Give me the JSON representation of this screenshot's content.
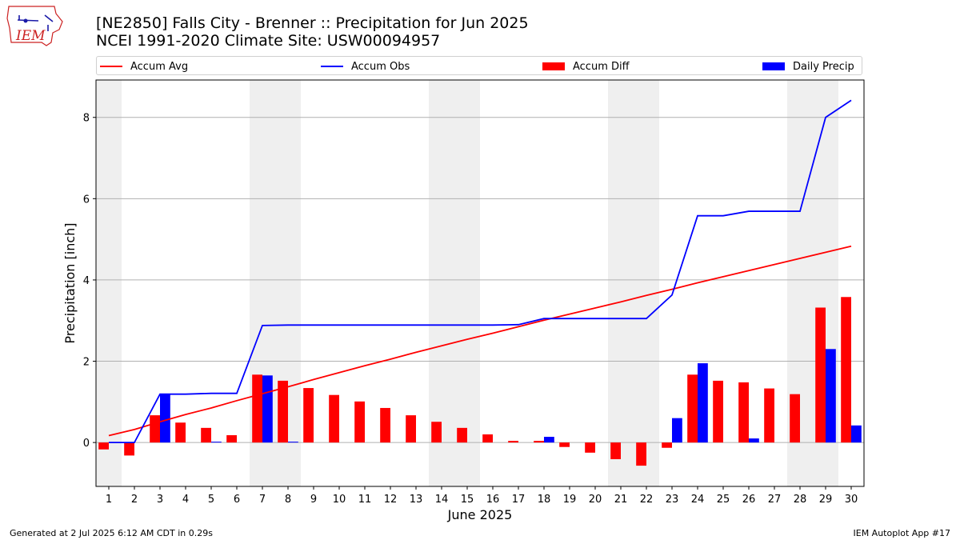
{
  "page": {
    "title_line1": "[NE2850] Falls City - Brenner :: Precipitation for Jun 2025",
    "title_line2": "NCEI 1991-2020 Climate Site: USW00094957",
    "logo_text": "IEM",
    "footer_left": "Generated at 2 Jul 2025 6:12 AM CDT in 0.29s",
    "footer_right": "IEM Autoplot App #17"
  },
  "legend": {
    "items": [
      {
        "label": "Accum Avg",
        "kind": "line",
        "color": "#ff0000"
      },
      {
        "label": "Accum Obs",
        "kind": "line",
        "color": "#0000ff"
      },
      {
        "label": "Accum Diff",
        "kind": "bar",
        "color": "#ff0000"
      },
      {
        "label": "Daily Precip",
        "kind": "bar",
        "color": "#0000ff"
      }
    ]
  },
  "chart_data": {
    "type": "bar",
    "xlabel": "June 2025",
    "ylabel": "Precipitation [inch]",
    "ylim": [
      -1.08,
      8.92
    ],
    "yticks": [
      0,
      2,
      4,
      6,
      8
    ],
    "grid": "horizontal",
    "categories": [
      "1",
      "2",
      "3",
      "4",
      "5",
      "6",
      "7",
      "8",
      "9",
      "10",
      "11",
      "12",
      "13",
      "14",
      "15",
      "16",
      "17",
      "18",
      "19",
      "20",
      "21",
      "22",
      "23",
      "24",
      "25",
      "26",
      "27",
      "28",
      "29",
      "30"
    ],
    "weekend_days": [
      1,
      7,
      8,
      14,
      15,
      21,
      22,
      28,
      29
    ],
    "colors": {
      "avg": "#ff0000",
      "obs": "#0000ff",
      "weekend_shade": "#efefef",
      "grid": "#b0b0b0"
    },
    "series": [
      {
        "name": "Accum Diff",
        "kind": "bar",
        "values": [
          -0.17,
          -0.32,
          0.67,
          0.49,
          0.36,
          0.18,
          1.67,
          1.52,
          1.34,
          1.17,
          1.01,
          0.85,
          0.67,
          0.51,
          0.36,
          0.2,
          0.04,
          0.04,
          -0.11,
          -0.25,
          -0.41,
          -0.57,
          -0.13,
          1.67,
          1.52,
          1.48,
          1.33,
          1.19,
          3.32,
          3.58
        ]
      },
      {
        "name": "Daily Precip",
        "kind": "bar",
        "values": [
          0,
          0,
          1.19,
          0,
          0.02,
          0,
          1.65,
          0.02,
          0,
          0,
          0,
          0,
          0,
          0,
          0,
          0,
          0,
          0.14,
          0,
          0,
          0,
          0,
          0.6,
          1.95,
          0,
          0.1,
          0,
          0,
          2.3,
          0.42
        ]
      },
      {
        "name": "Accum Avg",
        "kind": "line",
        "values": [
          0.17,
          0.32,
          0.51,
          0.69,
          0.85,
          1.03,
          1.2,
          1.37,
          1.55,
          1.72,
          1.89,
          2.05,
          2.22,
          2.38,
          2.54,
          2.69,
          2.85,
          3.01,
          3.16,
          3.31,
          3.46,
          3.62,
          3.77,
          3.93,
          4.08,
          4.23,
          4.38,
          4.53,
          4.68,
          4.83
        ]
      },
      {
        "name": "Accum Obs",
        "kind": "line",
        "values": [
          0,
          0,
          1.19,
          1.19,
          1.21,
          1.21,
          2.88,
          2.89,
          2.89,
          2.89,
          2.89,
          2.89,
          2.89,
          2.89,
          2.89,
          2.89,
          2.9,
          3.05,
          3.05,
          3.05,
          3.05,
          3.05,
          3.63,
          5.58,
          5.58,
          5.69,
          5.69,
          5.69,
          8.0,
          8.42
        ]
      }
    ]
  }
}
